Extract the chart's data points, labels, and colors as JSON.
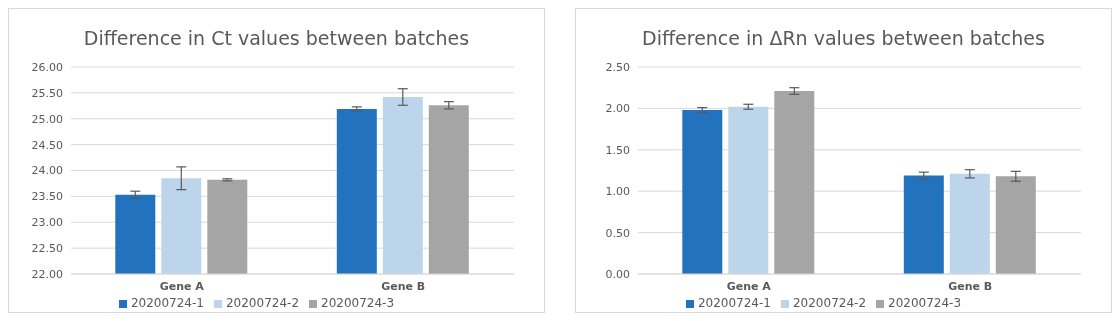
{
  "chart_data": [
    {
      "type": "bar",
      "title": "Difference in Ct values between batches",
      "categories": [
        "Gene A",
        "Gene B"
      ],
      "series": [
        {
          "name": "20200724-1",
          "color": "#2372bd",
          "values": [
            23.53,
            25.19
          ],
          "errors": [
            0.07,
            0.04
          ]
        },
        {
          "name": "20200724-2",
          "color": "#bdd5ea",
          "values": [
            23.85,
            25.42
          ],
          "errors": [
            0.22,
            0.16
          ]
        },
        {
          "name": "20200724-3",
          "color": "#a5a5a5",
          "values": [
            23.82,
            25.26
          ],
          "errors": [
            0.02,
            0.07
          ]
        }
      ],
      "ylim": [
        22,
        26
      ],
      "yticks": [
        {
          "value": 22,
          "label": "22.00"
        },
        {
          "value": 22.5,
          "label": "22.50"
        },
        {
          "value": 23,
          "label": "23.00"
        },
        {
          "value": 23.5,
          "label": "23.50"
        },
        {
          "value": 24,
          "label": "24.00"
        },
        {
          "value": 24.5,
          "label": "24.50"
        },
        {
          "value": 25,
          "label": "25.00"
        },
        {
          "value": 25.5,
          "label": "25.50"
        },
        {
          "value": 26,
          "label": "26.00"
        }
      ],
      "grid": "y",
      "legend": "bottom"
    },
    {
      "type": "bar",
      "title": "Difference in ΔRn values between batches",
      "categories": [
        "Gene A",
        "Gene B"
      ],
      "series": [
        {
          "name": "20200724-1",
          "color": "#2372bd",
          "values": [
            1.98,
            1.19
          ],
          "errors": [
            0.03,
            0.04
          ]
        },
        {
          "name": "20200724-2",
          "color": "#bdd5ea",
          "values": [
            2.02,
            1.21
          ],
          "errors": [
            0.03,
            0.05
          ]
        },
        {
          "name": "20200724-3",
          "color": "#a5a5a5",
          "values": [
            2.21,
            1.18
          ],
          "errors": [
            0.04,
            0.06
          ]
        }
      ],
      "ylim": [
        0,
        2.5
      ],
      "yticks": [
        {
          "value": 0,
          "label": "0.00"
        },
        {
          "value": 0.5,
          "label": "0.50"
        },
        {
          "value": 1,
          "label": "1.00"
        },
        {
          "value": 1.5,
          "label": "1.50"
        },
        {
          "value": 2,
          "label": "2.00"
        },
        {
          "value": 2.5,
          "label": "2.50"
        }
      ],
      "grid": "y",
      "legend": "bottom"
    }
  ]
}
